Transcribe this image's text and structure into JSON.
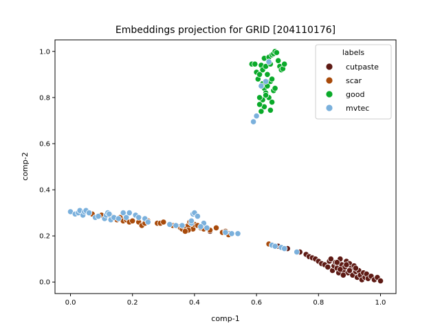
{
  "chart_data": {
    "type": "scatter",
    "title": "Embeddings projection for GRID [204110176]",
    "xlabel": "comp-1",
    "ylabel": "comp-2",
    "xlim": [
      -0.05,
      1.05
    ],
    "ylim": [
      -0.05,
      1.05
    ],
    "xticks": [
      "0.0",
      "0.2",
      "0.4",
      "0.6",
      "0.8",
      "1.0"
    ],
    "yticks": [
      "0.0",
      "0.2",
      "0.4",
      "0.6",
      "0.8",
      "1.0"
    ],
    "grid": false,
    "legend": {
      "title": "labels",
      "placement": "top-right"
    },
    "series": [
      {
        "name": "cutpaste",
        "color": "#5e1a14",
        "points": [
          [
            0.64,
            0.165
          ],
          [
            0.67,
            0.155
          ],
          [
            0.7,
            0.145
          ],
          [
            0.74,
            0.13
          ],
          [
            0.76,
            0.12
          ],
          [
            0.77,
            0.11
          ],
          [
            0.78,
            0.105
          ],
          [
            0.79,
            0.1
          ],
          [
            0.8,
            0.09
          ],
          [
            0.81,
            0.08
          ],
          [
            0.82,
            0.075
          ],
          [
            0.83,
            0.065
          ],
          [
            0.835,
            0.09
          ],
          [
            0.84,
            0.1
          ],
          [
            0.845,
            0.05
          ],
          [
            0.85,
            0.07
          ],
          [
            0.855,
            0.085
          ],
          [
            0.86,
            0.06
          ],
          [
            0.865,
            0.04
          ],
          [
            0.87,
            0.1
          ],
          [
            0.875,
            0.075
          ],
          [
            0.88,
            0.05
          ],
          [
            0.885,
            0.065
          ],
          [
            0.89,
            0.09
          ],
          [
            0.895,
            0.04
          ],
          [
            0.9,
            0.08
          ],
          [
            0.905,
            0.06
          ],
          [
            0.91,
            0.03
          ],
          [
            0.915,
            0.07
          ],
          [
            0.92,
            0.045
          ],
          [
            0.925,
            0.02
          ],
          [
            0.93,
            0.05
          ],
          [
            0.935,
            0.03
          ],
          [
            0.94,
            0.01
          ],
          [
            0.945,
            0.04
          ],
          [
            0.95,
            0.02
          ],
          [
            0.955,
            0.035
          ],
          [
            0.96,
            0.015
          ],
          [
            0.97,
            0.025
          ],
          [
            0.98,
            0.01
          ],
          [
            0.99,
            0.02
          ],
          [
            1.0,
            0.005
          ],
          [
            0.86,
            0.085
          ],
          [
            0.88,
            0.03
          ],
          [
            0.9,
            0.05
          ],
          [
            0.92,
            0.06
          ],
          [
            0.87,
            0.055
          ],
          [
            0.89,
            0.075
          ],
          [
            0.51,
            0.21
          ],
          [
            0.45,
            0.22
          ]
        ]
      },
      {
        "name": "scar",
        "color": "#a84a0a",
        "points": [
          [
            0.06,
            0.3
          ],
          [
            0.07,
            0.295
          ],
          [
            0.1,
            0.29
          ],
          [
            0.13,
            0.285
          ],
          [
            0.14,
            0.28
          ],
          [
            0.15,
            0.27
          ],
          [
            0.16,
            0.28
          ],
          [
            0.17,
            0.265
          ],
          [
            0.18,
            0.27
          ],
          [
            0.19,
            0.26
          ],
          [
            0.2,
            0.265
          ],
          [
            0.22,
            0.26
          ],
          [
            0.23,
            0.245
          ],
          [
            0.24,
            0.255
          ],
          [
            0.25,
            0.265
          ],
          [
            0.28,
            0.255
          ],
          [
            0.29,
            0.255
          ],
          [
            0.3,
            0.26
          ],
          [
            0.32,
            0.25
          ],
          [
            0.33,
            0.245
          ],
          [
            0.35,
            0.24
          ],
          [
            0.355,
            0.235
          ],
          [
            0.36,
            0.23
          ],
          [
            0.37,
            0.24
          ],
          [
            0.38,
            0.245
          ],
          [
            0.385,
            0.26
          ],
          [
            0.39,
            0.255
          ],
          [
            0.395,
            0.23
          ],
          [
            0.4,
            0.25
          ],
          [
            0.41,
            0.245
          ],
          [
            0.42,
            0.235
          ],
          [
            0.43,
            0.23
          ],
          [
            0.45,
            0.225
          ],
          [
            0.47,
            0.235
          ],
          [
            0.49,
            0.215
          ],
          [
            0.5,
            0.22
          ],
          [
            0.51,
            0.205
          ],
          [
            0.64,
            0.165
          ],
          [
            0.38,
            0.225
          ],
          [
            0.37,
            0.22
          ]
        ]
      },
      {
        "name": "good",
        "color": "#0aaa2a",
        "points": [
          [
            0.585,
            0.945
          ],
          [
            0.595,
            0.945
          ],
          [
            0.6,
            0.91
          ],
          [
            0.605,
            0.88
          ],
          [
            0.61,
            0.9
          ],
          [
            0.615,
            0.94
          ],
          [
            0.62,
            0.92
          ],
          [
            0.625,
            0.97
          ],
          [
            0.63,
            0.935
          ],
          [
            0.635,
            0.9
          ],
          [
            0.64,
            0.975
          ],
          [
            0.645,
            0.945
          ],
          [
            0.65,
            0.985
          ],
          [
            0.655,
            0.99
          ],
          [
            0.66,
            1.0
          ],
          [
            0.665,
            0.995
          ],
          [
            0.67,
            0.96
          ],
          [
            0.675,
            0.935
          ],
          [
            0.68,
            0.92
          ],
          [
            0.685,
            0.925
          ],
          [
            0.69,
            0.945
          ],
          [
            0.62,
            0.86
          ],
          [
            0.625,
            0.84
          ],
          [
            0.63,
            0.82
          ],
          [
            0.635,
            0.85
          ],
          [
            0.64,
            0.8
          ],
          [
            0.645,
            0.87
          ],
          [
            0.65,
            0.88
          ],
          [
            0.655,
            0.83
          ],
          [
            0.66,
            0.84
          ],
          [
            0.62,
            0.79
          ],
          [
            0.625,
            0.76
          ],
          [
            0.61,
            0.77
          ],
          [
            0.615,
            0.74
          ],
          [
            0.645,
            0.745
          ],
          [
            0.65,
            0.78
          ],
          [
            0.63,
            0.81
          ],
          [
            0.61,
            0.8
          ]
        ]
      },
      {
        "name": "mvtec",
        "color": "#7ab0dc",
        "points": [
          [
            0.0,
            0.305
          ],
          [
            0.015,
            0.295
          ],
          [
            0.025,
            0.3
          ],
          [
            0.03,
            0.31
          ],
          [
            0.04,
            0.29
          ],
          [
            0.045,
            0.305
          ],
          [
            0.05,
            0.31
          ],
          [
            0.06,
            0.3
          ],
          [
            0.08,
            0.28
          ],
          [
            0.09,
            0.285
          ],
          [
            0.11,
            0.275
          ],
          [
            0.115,
            0.29
          ],
          [
            0.12,
            0.3
          ],
          [
            0.125,
            0.295
          ],
          [
            0.13,
            0.27
          ],
          [
            0.14,
            0.28
          ],
          [
            0.155,
            0.275
          ],
          [
            0.17,
            0.3
          ],
          [
            0.18,
            0.28
          ],
          [
            0.19,
            0.3
          ],
          [
            0.21,
            0.29
          ],
          [
            0.22,
            0.28
          ],
          [
            0.24,
            0.275
          ],
          [
            0.25,
            0.26
          ],
          [
            0.32,
            0.25
          ],
          [
            0.34,
            0.245
          ],
          [
            0.36,
            0.245
          ],
          [
            0.39,
            0.255
          ],
          [
            0.395,
            0.295
          ],
          [
            0.4,
            0.3
          ],
          [
            0.41,
            0.285
          ],
          [
            0.43,
            0.255
          ],
          [
            0.44,
            0.235
          ],
          [
            0.5,
            0.215
          ],
          [
            0.52,
            0.21
          ],
          [
            0.54,
            0.21
          ],
          [
            0.42,
            0.24
          ],
          [
            0.39,
            0.265
          ],
          [
            0.65,
            0.16
          ],
          [
            0.66,
            0.155
          ],
          [
            0.68,
            0.15
          ],
          [
            0.69,
            0.145
          ],
          [
            0.73,
            0.13
          ],
          [
            0.59,
            0.695
          ],
          [
            0.6,
            0.72
          ],
          [
            0.615,
            0.85
          ],
          [
            0.64,
            0.955
          ],
          [
            0.63,
            0.87
          ]
        ]
      }
    ]
  }
}
